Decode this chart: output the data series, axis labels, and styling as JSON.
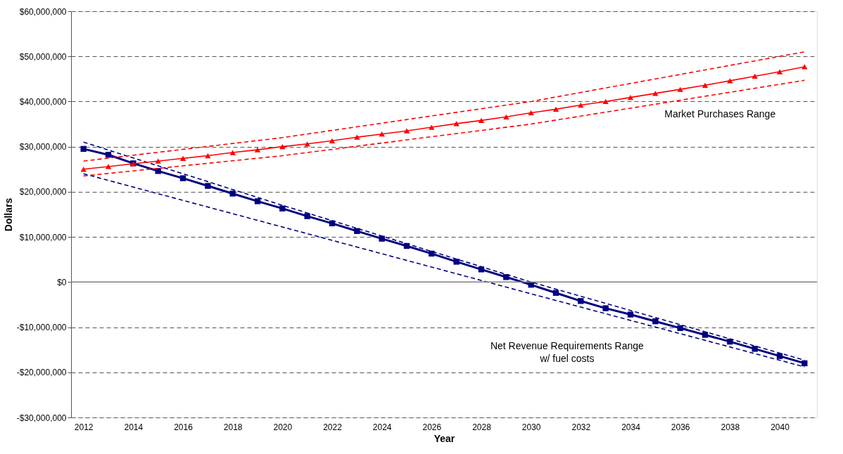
{
  "chart_data": {
    "type": "line",
    "xlabel": "Year",
    "ylabel": "Dollars",
    "xlim": [
      2011.5,
      2041.5
    ],
    "xticks": [
      2012,
      2014,
      2016,
      2018,
      2020,
      2022,
      2024,
      2026,
      2028,
      2030,
      2032,
      2034,
      2036,
      2038,
      2040
    ],
    "ylim": [
      -30000000,
      60000000
    ],
    "yticks": [
      {
        "value": -30000000,
        "label": "-$30,000,000"
      },
      {
        "value": -20000000,
        "label": "-$20,000,000"
      },
      {
        "value": -10000000,
        "label": "-$10,000,000"
      },
      {
        "value": 0,
        "label": "$0"
      },
      {
        "value": 10000000,
        "label": "$10,000,000"
      },
      {
        "value": 20000000,
        "label": "$20,000,000"
      },
      {
        "value": 30000000,
        "label": "$30,000,000"
      },
      {
        "value": 40000000,
        "label": "$40,000,000"
      },
      {
        "value": 50000000,
        "label": "$50,000,000"
      },
      {
        "value": 60000000,
        "label": "$60,000,000"
      }
    ],
    "grid": "y",
    "ref_lines": [
      {
        "axis": "y",
        "value": 0,
        "color": "#808080",
        "line_style": "solid"
      }
    ],
    "annotations": [
      "Market Purchases Range",
      "Net Revenue Requirements Range\nw/ fuel costs"
    ],
    "series": [
      {
        "color": "#ff0000",
        "marker": "none",
        "line_style": "dashed",
        "x": [
          2012,
          2020,
          2030,
          2041
        ],
        "values": [
          26800000,
          32000000,
          40000000,
          51000000
        ]
      },
      {
        "color": "#ff0000",
        "marker": "none",
        "line_style": "dashed",
        "x": [
          2012,
          2020,
          2030,
          2041
        ],
        "values": [
          23500000,
          28000000,
          35000000,
          44700000
        ]
      },
      {
        "color": "#ff0000",
        "marker": "triangle",
        "line_style": "solid",
        "x": [
          2012,
          2013,
          2014,
          2015,
          2016,
          2017,
          2018,
          2019,
          2020,
          2021,
          2022,
          2023,
          2024,
          2025,
          2026,
          2027,
          2028,
          2029,
          2030,
          2031,
          2032,
          2033,
          2034,
          2035,
          2036,
          2037,
          2038,
          2039,
          2040,
          2041
        ],
        "values": [
          25000000,
          25600000,
          26200000,
          26800000,
          27400000,
          28000000,
          28700000,
          29300000,
          30000000,
          30600000,
          31300000,
          32100000,
          32800000,
          33500000,
          34300000,
          35100000,
          35800000,
          36600000,
          37500000,
          38300000,
          39200000,
          40000000,
          40900000,
          41800000,
          42700000,
          43600000,
          44600000,
          45600000,
          46600000,
          47700000
        ]
      },
      {
        "color": "#000080",
        "marker": "none",
        "line_style": "dashed",
        "x": [
          2012,
          2020,
          2030,
          2041
        ],
        "values": [
          31000000,
          17000000,
          0,
          -17300000
        ]
      },
      {
        "color": "#000080",
        "marker": "none",
        "line_style": "dashed",
        "x": [
          2012,
          2020,
          2030,
          2041
        ],
        "values": [
          24000000,
          12200000,
          -2600000,
          -18800000
        ]
      },
      {
        "color": "#000080",
        "marker": "square",
        "line_style": "solid",
        "x": [
          2012,
          2013,
          2014,
          2015,
          2016,
          2017,
          2018,
          2019,
          2020,
          2021,
          2022,
          2023,
          2024,
          2025,
          2026,
          2027,
          2028,
          2029,
          2030,
          2031,
          2032,
          2033,
          2034,
          2035,
          2036,
          2037,
          2038,
          2039,
          2040,
          2041
        ],
        "values": [
          29500000,
          28200000,
          26300000,
          24600000,
          23000000,
          21300000,
          19600000,
          17900000,
          16300000,
          14600000,
          13000000,
          11300000,
          9600000,
          8000000,
          6300000,
          4500000,
          2800000,
          1100000,
          -600000,
          -2400000,
          -4200000,
          -5800000,
          -7200000,
          -8700000,
          -10200000,
          -11700000,
          -13200000,
          -14800000,
          -16400000,
          -18000000
        ]
      }
    ]
  }
}
